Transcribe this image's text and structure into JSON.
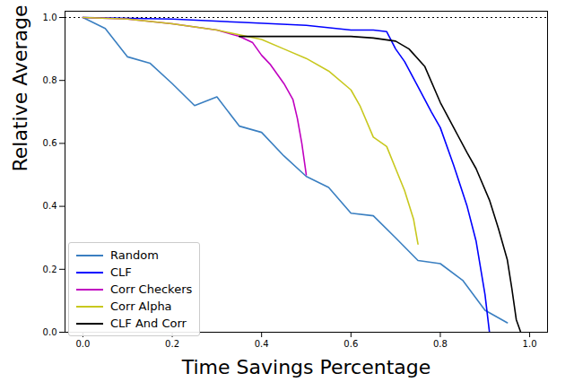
{
  "chart_data": {
    "type": "line",
    "x_label": "Time Savings Percentage",
    "y_label": "Relative Average Precision",
    "xlim": [
      -0.04,
      1.04
    ],
    "ylim": [
      0,
      1.02
    ],
    "xticks": [
      {
        "value": 0,
        "label": "0.0"
      },
      0.2,
      0.4,
      0.6,
      0.8,
      {
        "value": 1,
        "label": "1.0"
      }
    ],
    "yticks": [
      {
        "value": 0,
        "label": "0.0"
      },
      0.2,
      0.4,
      0.6,
      0.8,
      {
        "value": 1,
        "label": "1.0"
      }
    ],
    "grid": false,
    "legend": "lower left",
    "reference_lines": [
      {
        "y": 1.0,
        "color": "#000000",
        "line_style": "dotted"
      }
    ],
    "series": [
      {
        "name": "Random",
        "color": "#3a7fc1",
        "x": [
          0,
          0.05,
          0.1,
          0.15,
          0.2,
          0.25,
          0.3,
          0.35,
          0.4,
          0.45,
          0.5,
          0.55,
          0.6,
          0.65,
          0.7,
          0.75,
          0.8,
          0.85,
          0.9,
          0.95
        ],
        "values": [
          1.0,
          0.965,
          0.875,
          0.855,
          0.79,
          0.72,
          0.748,
          0.655,
          0.635,
          0.56,
          0.495,
          0.46,
          0.378,
          0.37,
          0.3,
          0.228,
          0.218,
          0.165,
          0.07,
          0.03
        ]
      },
      {
        "name": "CLF",
        "color": "#0000ff",
        "x": [
          0,
          0.2,
          0.35,
          0.5,
          0.6,
          0.65,
          0.68,
          0.7,
          0.72,
          0.75,
          0.78,
          0.8,
          0.83,
          0.86,
          0.88,
          0.9,
          0.91
        ],
        "values": [
          1.0,
          0.995,
          0.985,
          0.975,
          0.96,
          0.96,
          0.955,
          0.9,
          0.86,
          0.78,
          0.7,
          0.65,
          0.53,
          0.4,
          0.29,
          0.12,
          0.0
        ]
      },
      {
        "name": "Corr Checkers",
        "color": "#c000c0",
        "x": [
          0,
          0.1,
          0.2,
          0.3,
          0.35,
          0.38,
          0.4,
          0.42,
          0.45,
          0.47,
          0.48,
          0.49,
          0.5
        ],
        "values": [
          1.0,
          0.995,
          0.98,
          0.96,
          0.94,
          0.92,
          0.88,
          0.85,
          0.79,
          0.74,
          0.68,
          0.6,
          0.5
        ]
      },
      {
        "name": "Corr Alpha",
        "color": "#c8c81e",
        "x": [
          0,
          0.1,
          0.2,
          0.3,
          0.35,
          0.4,
          0.45,
          0.5,
          0.55,
          0.6,
          0.62,
          0.65,
          0.68,
          0.7,
          0.72,
          0.74,
          0.75
        ],
        "values": [
          1.0,
          0.995,
          0.98,
          0.96,
          0.945,
          0.93,
          0.9,
          0.87,
          0.83,
          0.77,
          0.72,
          0.62,
          0.59,
          0.52,
          0.45,
          0.36,
          0.28
        ]
      },
      {
        "name": "CLF And Corr",
        "color": "#000000",
        "x": [
          0.35,
          0.5,
          0.6,
          0.65,
          0.7,
          0.73,
          0.765,
          0.8,
          0.83,
          0.86,
          0.88,
          0.91,
          0.93,
          0.95,
          0.96,
          0.97,
          0.98
        ],
        "values": [
          0.94,
          0.94,
          0.94,
          0.935,
          0.925,
          0.9,
          0.845,
          0.73,
          0.65,
          0.57,
          0.52,
          0.42,
          0.33,
          0.23,
          0.14,
          0.04,
          0.0
        ]
      }
    ]
  }
}
